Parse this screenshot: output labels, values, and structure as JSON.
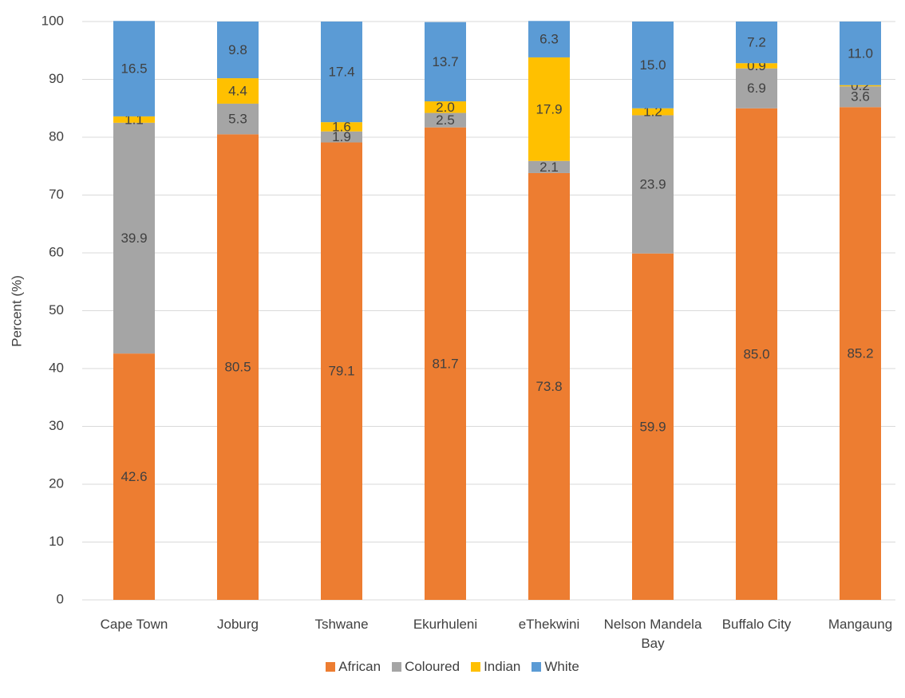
{
  "chart_data": {
    "type": "stacked_bar",
    "y_label": "Percent (%)",
    "categories": [
      "Cape Town",
      "Joburg",
      "Tshwane",
      "Ekurhuleni",
      "eThekwini",
      "Nelson Mandela Bay",
      "Buffalo City",
      "Mangaung"
    ],
    "series": [
      {
        "name": "African",
        "color": "#ed7d31",
        "values": [
          42.6,
          80.5,
          79.1,
          81.7,
          73.8,
          59.9,
          85.0,
          85.2
        ],
        "value_labels": [
          "42.6",
          "80.5",
          "79.1",
          "81.7",
          "73.8",
          "59.9",
          "85.0",
          "85.2"
        ]
      },
      {
        "name": "Coloured",
        "color": "#a5a5a5",
        "values": [
          39.9,
          5.3,
          1.9,
          2.5,
          2.1,
          23.9,
          6.9,
          3.6
        ],
        "value_labels": [
          "39.9",
          "5.3",
          "1.9",
          "2.5",
          "2.1",
          "23.9",
          "6.9",
          "3.6"
        ]
      },
      {
        "name": "Indian",
        "color": "#ffc000",
        "values": [
          1.1,
          4.4,
          1.6,
          2.0,
          17.9,
          1.2,
          0.9,
          0.2
        ],
        "value_labels": [
          "1.1",
          "4.4",
          "1.6",
          "2.0",
          "17.9",
          "1.2",
          "0.9",
          "0.2"
        ]
      },
      {
        "name": "White",
        "color": "#5b9bd5",
        "values": [
          16.5,
          9.8,
          17.4,
          13.7,
          6.3,
          15.0,
          7.2,
          11.0
        ],
        "value_labels": [
          "16.5",
          "9.8",
          "17.4",
          "13.7",
          "6.3",
          "15.0",
          "7.2",
          "11.0"
        ]
      }
    ],
    "ylim": [
      0,
      100
    ],
    "yticks": [
      0,
      10,
      20,
      30,
      40,
      50,
      60,
      70,
      80,
      90,
      100
    ],
    "grid": true,
    "legend": "bottom"
  }
}
